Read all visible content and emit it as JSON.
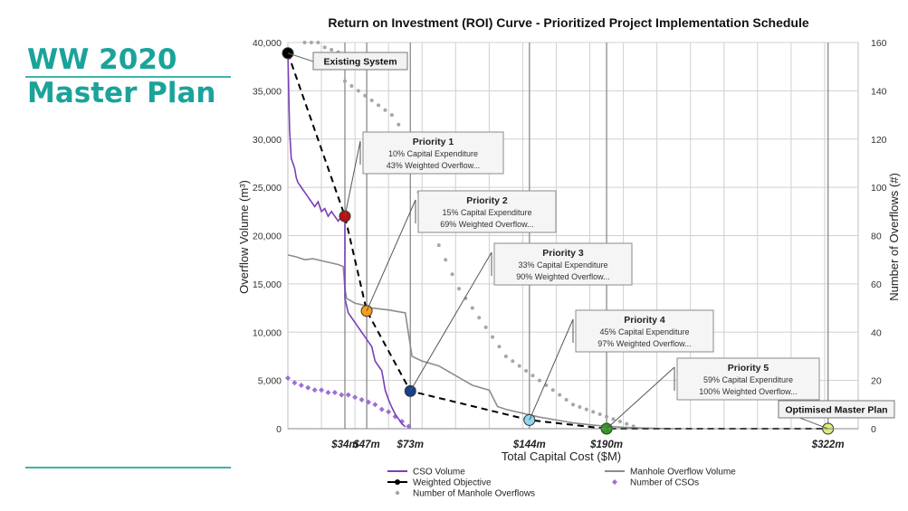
{
  "sidebar": {
    "title_line1": "WW 2020",
    "title_line2": "Master Plan"
  },
  "chart_data": {
    "type": "line",
    "title": "Return on Investment (ROI) Curve - Prioritized Project Implementation Schedule",
    "xlabel": "Total Capital Cost ($M)",
    "ylabel": "Overflow Volume (m³)",
    "y2label": "Number of Overflows (#)",
    "xlim": [
      0,
      340
    ],
    "ylim": [
      0,
      40000
    ],
    "y2lim": [
      0,
      160
    ],
    "yticks": [
      "0",
      "5,000",
      "10,000",
      "15,000",
      "20,000",
      "25,000",
      "30,000",
      "35,000",
      "40,000"
    ],
    "y2ticks": [
      "0",
      "20",
      "40",
      "60",
      "80",
      "100",
      "120",
      "140",
      "160"
    ],
    "grid": true,
    "legend_position": "bottom",
    "milestones": [
      {
        "x": 34,
        "label": "$34m"
      },
      {
        "x": 47,
        "label": "$47m"
      },
      {
        "x": 73,
        "label": "$73m"
      },
      {
        "x": 144,
        "label": "$144m"
      },
      {
        "x": 190,
        "label": "$190m"
      },
      {
        "x": 322,
        "label": "$322m"
      }
    ],
    "weighted_objective": {
      "name": "Weighted Objective",
      "points": [
        {
          "x": 0,
          "y": 38900,
          "color": "#000000",
          "label": "Existing System"
        },
        {
          "x": 34,
          "y": 22000,
          "color": "#b81414",
          "label": "Priority 1",
          "detail1": "10% Capital Expenditure",
          "detail2": "43% Weighted Overflow..."
        },
        {
          "x": 47,
          "y": 12200,
          "color": "#f5a01a",
          "label": "Priority 2",
          "detail1": "15% Capital Expenditure",
          "detail2": "69% Weighted Overflow..."
        },
        {
          "x": 73,
          "y": 3900,
          "color": "#173f8f",
          "label": "Priority 3",
          "detail1": "33% Capital Expenditure",
          "detail2": "90% Weighted Overflow..."
        },
        {
          "x": 144,
          "y": 900,
          "color": "#8fd6f2",
          "label": "Priority 4",
          "detail1": "45% Capital Expenditure",
          "detail2": "97% Weighted Overflow..."
        },
        {
          "x": 190,
          "y": 0,
          "color": "#2e9b1c",
          "label": "Priority 5",
          "detail1": "59% Capital Expenditure",
          "detail2": "100% Weighted Overflow..."
        },
        {
          "x": 322,
          "y": 0,
          "color": "#d6f07a",
          "label": "Optimised Master Plan"
        }
      ]
    },
    "series": [
      {
        "name": "CSO Volume",
        "color": "#7a3fb8",
        "x": [
          0,
          1,
          2,
          3,
          4,
          5,
          6,
          8,
          10,
          12,
          14,
          16,
          18,
          20,
          22,
          24,
          26,
          28,
          30,
          32,
          34,
          34,
          36,
          38,
          40,
          42,
          44,
          46,
          48,
          50,
          52,
          54,
          56,
          58,
          60,
          62,
          64,
          66,
          68,
          70
        ],
        "y": [
          38900,
          31000,
          28000,
          27500,
          27000,
          26000,
          25500,
          25000,
          24500,
          24000,
          23500,
          23000,
          23500,
          22500,
          22800,
          22000,
          22500,
          22000,
          21500,
          22000,
          22000,
          13500,
          12000,
          11500,
          11000,
          10500,
          10000,
          9500,
          9000,
          8500,
          7000,
          6500,
          6000,
          4000,
          3000,
          2200,
          1500,
          1000,
          500,
          200
        ]
      },
      {
        "name": "Manhole Overflow Volume",
        "color": "#8c8c8c",
        "x": [
          0,
          5,
          10,
          15,
          20,
          25,
          30,
          33,
          34,
          35,
          40,
          45,
          50,
          60,
          70,
          74,
          80,
          90,
          100,
          110,
          120,
          125,
          130,
          140,
          150,
          160,
          170,
          180,
          190,
          200,
          210,
          220,
          230
        ],
        "y": [
          18000,
          17800,
          17500,
          17600,
          17400,
          17200,
          17000,
          16800,
          14500,
          13500,
          13000,
          12800,
          12500,
          12300,
          12000,
          7500,
          7000,
          6500,
          5500,
          4500,
          4000,
          2300,
          2000,
          1600,
          1200,
          900,
          600,
          400,
          250,
          150,
          80,
          30,
          0
        ]
      },
      {
        "name": "Number of Manhole Overflows",
        "color": "#a6a6a6",
        "axis": "secondary",
        "x": [
          10,
          14,
          18,
          22,
          26,
          30,
          34,
          38,
          42,
          46,
          50,
          54,
          58,
          62,
          66,
          70,
          74,
          78,
          82,
          86,
          90,
          94,
          98,
          102,
          106,
          110,
          114,
          118,
          122,
          126,
          130,
          134,
          138,
          142,
          146,
          150,
          154,
          158,
          162,
          166,
          170,
          174,
          178,
          182,
          186,
          190,
          194,
          198,
          202,
          206
        ],
        "y": [
          160,
          160,
          160,
          158,
          157,
          156,
          144,
          142,
          140,
          138,
          136,
          134,
          132,
          130,
          126,
          118,
          108,
          98,
          90,
          82,
          76,
          70,
          64,
          58,
          54,
          50,
          46,
          42,
          38,
          34,
          30,
          28,
          26,
          24,
          22,
          20,
          18,
          16,
          14,
          12,
          10,
          9,
          8,
          7,
          6,
          5,
          4,
          3,
          2,
          1
        ]
      },
      {
        "name": "Number of CSOs",
        "color": "#9b6fd6",
        "axis": "secondary",
        "x": [
          0,
          4,
          8,
          12,
          16,
          20,
          24,
          28,
          32,
          36,
          40,
          44,
          48,
          52,
          56,
          60,
          64,
          68,
          72
        ],
        "y": [
          21,
          19,
          18,
          17,
          16,
          16,
          15,
          15,
          14,
          14,
          13,
          12,
          11,
          10,
          8,
          7,
          5,
          3,
          1
        ]
      }
    ],
    "legend": [
      {
        "name": "CSO Volume",
        "symbol": "line",
        "color": "#7a3fb8"
      },
      {
        "name": "Manhole Overflow Volume",
        "symbol": "line",
        "color": "#8c8c8c"
      },
      {
        "name": "Weighted Objective",
        "symbol": "line-dot",
        "color": "#000000"
      },
      {
        "name": "Number of CSOs",
        "symbol": "diamond",
        "color": "#9b6fd6"
      },
      {
        "name": "Number of Manhole Overflows",
        "symbol": "dot",
        "color": "#a6a6a6"
      }
    ]
  }
}
